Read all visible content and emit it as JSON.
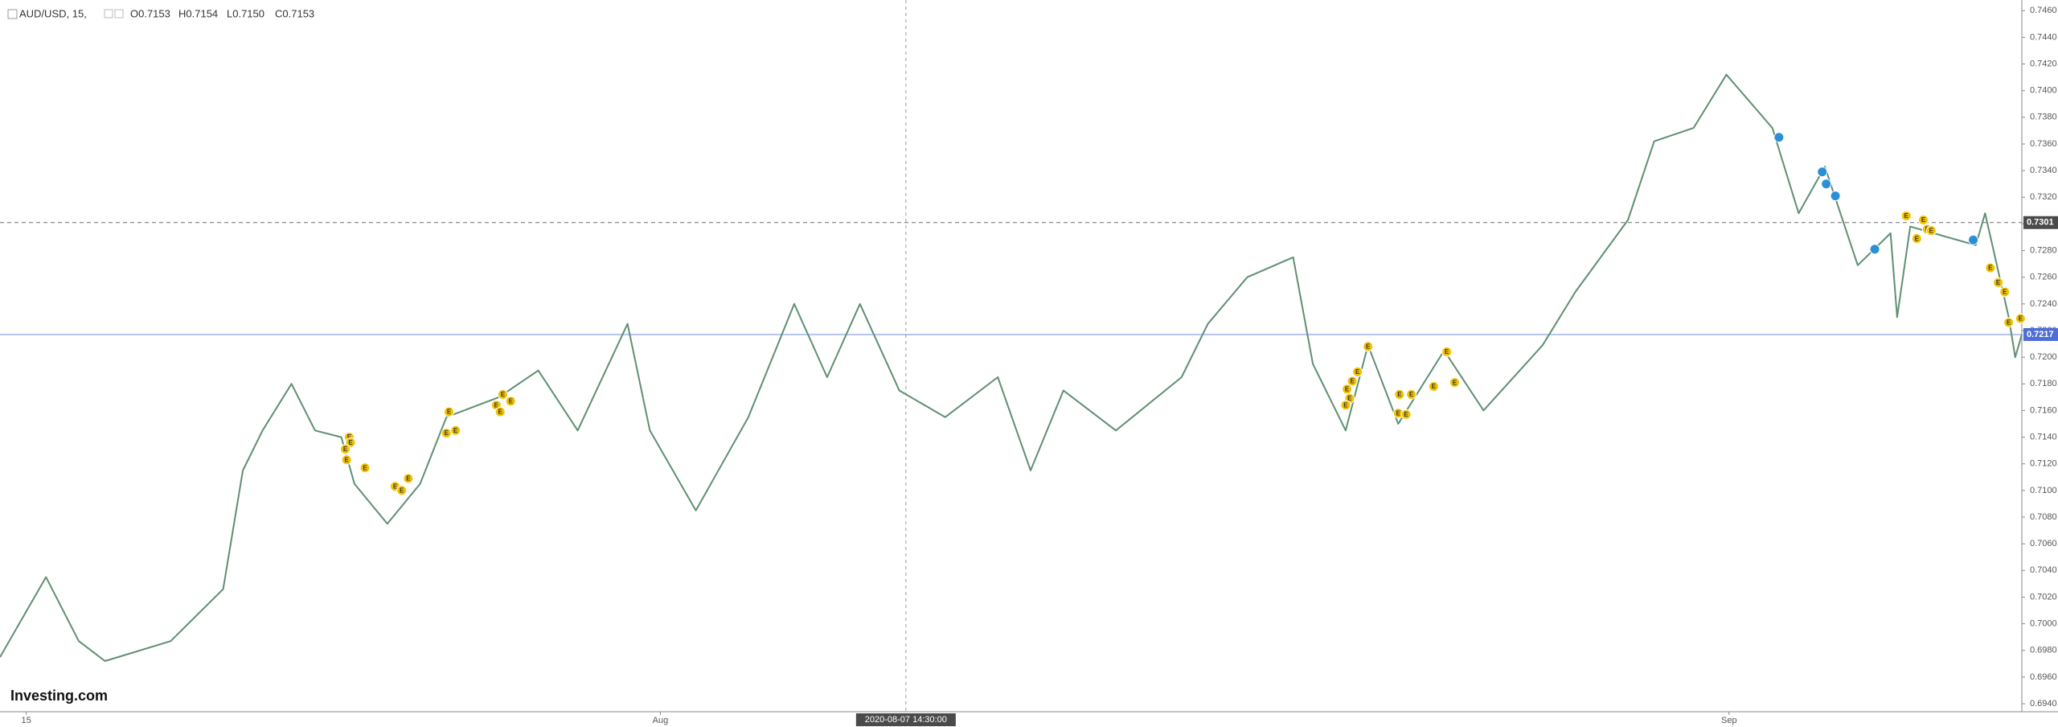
{
  "chart_data": {
    "type": "line",
    "title": "AUD/USD, 15,",
    "ohlc": [
      "O0.7153",
      "H0.7154",
      "L0.7150",
      "C0.7153"
    ],
    "logo": "Investing.com",
    "color": "#5e8f72",
    "x": [
      0,
      70,
      120,
      160,
      260,
      340,
      370,
      400,
      444,
      480,
      520,
      540,
      590,
      640,
      680,
      760,
      820,
      880,
      956,
      990,
      1060,
      1140,
      1210,
      1260,
      1310,
      1370,
      1440,
      1520,
      1570,
      1620,
      1700,
      1800,
      1840,
      1900,
      1970,
      2000,
      2050,
      2084,
      2130,
      2200,
      2260,
      2350,
      2400,
      2480,
      2520,
      2580,
      2630,
      2700,
      2740,
      2780,
      2830,
      2880,
      2890,
      2910,
      3010,
      3024,
      3060,
      3070,
      3080
    ],
    "values": [
      0.6975,
      0.7035,
      0.6987,
      0.6972,
      0.6987,
      0.7026,
      0.7115,
      0.7145,
      0.718,
      0.7145,
      0.714,
      0.7105,
      0.7075,
      0.7105,
      0.7155,
      0.717,
      0.719,
      0.7145,
      0.7225,
      0.7145,
      0.7085,
      0.7155,
      0.724,
      0.7185,
      0.724,
      0.7175,
      0.7155,
      0.7185,
      0.7115,
      0.7175,
      0.7145,
      0.7185,
      0.7225,
      0.726,
      0.7275,
      0.7195,
      0.7145,
      0.7209,
      0.715,
      0.7205,
      0.716,
      0.7209,
      0.7249,
      0.7303,
      0.7362,
      0.7372,
      0.7412,
      0.7372,
      0.7308,
      0.7343,
      0.7269,
      0.7293,
      0.723,
      0.7298,
      0.7284,
      0.7308,
      0.723,
      0.72,
      0.7217
    ],
    "xlim": [
      0,
      3080
    ],
    "ylim": [
      0.6934,
      0.7468
    ],
    "xticks": [
      {
        "value": 40,
        "label": "15"
      },
      {
        "value": 1006,
        "label": "Aug"
      },
      {
        "value": 2634,
        "label": "Sep"
      }
    ],
    "yticks": [
      {
        "value": 0.694,
        "label": "0.6940"
      },
      {
        "value": 0.696,
        "label": "0.6960"
      },
      {
        "value": 0.698,
        "label": "0.6980"
      },
      {
        "value": 0.7,
        "label": "0.7000"
      },
      {
        "value": 0.702,
        "label": "0.7020"
      },
      {
        "value": 0.704,
        "label": "0.7040"
      },
      {
        "value": 0.706,
        "label": "0.7060"
      },
      {
        "value": 0.708,
        "label": "0.7080"
      },
      {
        "value": 0.71,
        "label": "0.7100"
      },
      {
        "value": 0.712,
        "label": "0.7120"
      },
      {
        "value": 0.714,
        "label": "0.7140"
      },
      {
        "value": 0.716,
        "label": "0.7160"
      },
      {
        "value": 0.718,
        "label": "0.7180"
      },
      {
        "value": 0.72,
        "label": "0.7200"
      },
      {
        "value": 0.722,
        "label": "0.7220"
      },
      {
        "value": 0.724,
        "label": "0.7240"
      },
      {
        "value": 0.726,
        "label": "0.7260"
      },
      {
        "value": 0.728,
        "label": "0.7280"
      },
      {
        "value": 0.73,
        "label": "0.7300"
      },
      {
        "value": 0.732,
        "label": "0.7320"
      },
      {
        "value": 0.734,
        "label": "0.7340"
      },
      {
        "value": 0.736,
        "label": "0.7360"
      },
      {
        "value": 0.738,
        "label": "0.7380"
      },
      {
        "value": 0.74,
        "label": "0.7400"
      },
      {
        "value": 0.742,
        "label": "0.7420"
      },
      {
        "value": 0.744,
        "label": "0.7440"
      },
      {
        "value": 0.746,
        "label": "0.7460"
      }
    ],
    "price_lines": [
      {
        "value": 0.7301,
        "label": "0.7301",
        "color": "#4a4a4a",
        "dashed": true
      },
      {
        "value": 0.7217,
        "label": "0.7217",
        "color": "#4f6fd8",
        "dashed": false
      }
    ],
    "crosshair": {
      "x": 1380,
      "label": "2020-08-07 14:30:00"
    },
    "events": [
      {
        "x": 532,
        "y": 0.714,
        "label": "E",
        "color": "#f2c200"
      },
      {
        "x": 534,
        "y": 0.7136,
        "label": "E",
        "color": "#f2c200"
      },
      {
        "x": 526,
        "y": 0.7131,
        "label": "E",
        "color": "#f2c200"
      },
      {
        "x": 528,
        "y": 0.7123,
        "label": "E",
        "color": "#f2c200"
      },
      {
        "x": 556,
        "y": 0.7117,
        "label": "E",
        "color": "#f2c200"
      },
      {
        "x": 602,
        "y": 0.7103,
        "label": "E",
        "color": "#f2c200"
      },
      {
        "x": 612,
        "y": 0.71,
        "label": "E",
        "color": "#f2c200"
      },
      {
        "x": 622,
        "y": 0.7109,
        "label": "E",
        "color": "#f2c200"
      },
      {
        "x": 684,
        "y": 0.7159,
        "label": "E",
        "color": "#f2c200"
      },
      {
        "x": 680,
        "y": 0.7143,
        "label": "E",
        "color": "#f2c200"
      },
      {
        "x": 694,
        "y": 0.7145,
        "label": "E",
        "color": "#f2c200"
      },
      {
        "x": 766,
        "y": 0.7172,
        "label": "E",
        "color": "#f2c200"
      },
      {
        "x": 756,
        "y": 0.7164,
        "label": "E",
        "color": "#f2c200"
      },
      {
        "x": 762,
        "y": 0.7159,
        "label": "E",
        "color": "#f2c200"
      },
      {
        "x": 778,
        "y": 0.7167,
        "label": "E",
        "color": "#f2c200"
      },
      {
        "x": 2084,
        "y": 0.7208,
        "label": "E",
        "color": "#f2c200"
      },
      {
        "x": 2068,
        "y": 0.7189,
        "label": "E",
        "color": "#f2c200"
      },
      {
        "x": 2060,
        "y": 0.7182,
        "label": "E",
        "color": "#f2c200"
      },
      {
        "x": 2052,
        "y": 0.7176,
        "label": "E",
        "color": "#f2c200"
      },
      {
        "x": 2056,
        "y": 0.7169,
        "label": "E",
        "color": "#f2c200"
      },
      {
        "x": 2050,
        "y": 0.7164,
        "label": "E",
        "color": "#f2c200"
      },
      {
        "x": 2132,
        "y": 0.7172,
        "label": "E",
        "color": "#f2c200"
      },
      {
        "x": 2130,
        "y": 0.7158,
        "label": "E",
        "color": "#f2c200"
      },
      {
        "x": 2142,
        "y": 0.7157,
        "label": "E",
        "color": "#f2c200"
      },
      {
        "x": 2150,
        "y": 0.7172,
        "label": "E",
        "color": "#f2c200"
      },
      {
        "x": 2184,
        "y": 0.7178,
        "label": "E",
        "color": "#f2c200"
      },
      {
        "x": 2204,
        "y": 0.7204,
        "label": "E",
        "color": "#f2c200"
      },
      {
        "x": 2216,
        "y": 0.7181,
        "label": "E",
        "color": "#f2c200"
      },
      {
        "x": 2904,
        "y": 0.7306,
        "label": "E",
        "color": "#f2c200"
      },
      {
        "x": 2930,
        "y": 0.7303,
        "label": "E",
        "color": "#f2c200"
      },
      {
        "x": 2936,
        "y": 0.7296,
        "label": "E",
        "color": "#f2c200"
      },
      {
        "x": 2942,
        "y": 0.7295,
        "label": "E",
        "color": "#f2c200"
      },
      {
        "x": 2920,
        "y": 0.7289,
        "label": "E",
        "color": "#f2c200"
      },
      {
        "x": 3032,
        "y": 0.7267,
        "label": "E",
        "color": "#f2c200"
      },
      {
        "x": 3044,
        "y": 0.7256,
        "label": "E",
        "color": "#f2c200"
      },
      {
        "x": 3054,
        "y": 0.7249,
        "label": "E",
        "color": "#f2c200"
      },
      {
        "x": 3060,
        "y": 0.7226,
        "label": "E",
        "color": "#f2c200"
      },
      {
        "x": 3078,
        "y": 0.7229,
        "label": "E",
        "color": "#f2c200"
      },
      {
        "x": 2710,
        "y": 0.7365,
        "color": "#2a8fd6"
      },
      {
        "x": 2776,
        "y": 0.7339,
        "color": "#2a8fd6"
      },
      {
        "x": 2782,
        "y": 0.733,
        "color": "#2a8fd6"
      },
      {
        "x": 2796,
        "y": 0.7321,
        "color": "#2a8fd6"
      },
      {
        "x": 2856,
        "y": 0.7281,
        "color": "#2a8fd6"
      },
      {
        "x": 3006,
        "y": 0.7288,
        "color": "#2a8fd6"
      }
    ]
  }
}
